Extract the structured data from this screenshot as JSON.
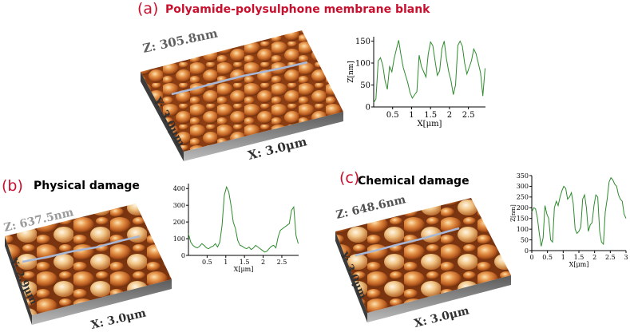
{
  "colors": {
    "label_red": "#c8102e",
    "profile_line": "#2e8b2e",
    "surface_light": "#f3c98a",
    "surface_mid": "#cf7a35",
    "surface_dark": "#6e2f0d",
    "trace": "#a9b8d6"
  },
  "panels": [
    {
      "label": "(a)",
      "title": "Polyamide-polysulphone membrane blank",
      "image": {
        "z": "Z: 305.8nm",
        "y": "Y: 3.0μm",
        "x": "X: 3.0μm"
      }
    },
    {
      "label": "(b)",
      "title": "Physical damage",
      "image": {
        "z": "Z: 637.5nm",
        "y": "Y: 2.9μm",
        "x": "X: 3.0μm"
      }
    },
    {
      "label": "(c)",
      "title": "Chemical damage",
      "image": {
        "z": "Z: 648.6nm",
        "y": "Y: 3.0μm",
        "x": "X: 3.0μm"
      }
    }
  ],
  "chart_data": [
    {
      "type": "line",
      "xlabel": "X[μm]",
      "ylabel": "Z[nm]",
      "xlim": [
        0,
        2.95
      ],
      "ylim": [
        0,
        160
      ],
      "xticks": [
        0.5,
        1,
        1.5,
        2,
        2.5
      ],
      "yticks": [
        0,
        50,
        100,
        150
      ],
      "grid": false,
      "x": [
        0,
        0.06,
        0.12,
        0.18,
        0.24,
        0.3,
        0.36,
        0.42,
        0.48,
        0.54,
        0.6,
        0.66,
        0.72,
        0.78,
        0.84,
        0.9,
        0.96,
        1.02,
        1.08,
        1.14,
        1.2,
        1.26,
        1.32,
        1.38,
        1.44,
        1.5,
        1.56,
        1.62,
        1.68,
        1.74,
        1.8,
        1.86,
        1.92,
        1.98,
        2.04,
        2.1,
        2.16,
        2.22,
        2.28,
        2.34,
        2.4,
        2.46,
        2.52,
        2.58,
        2.64,
        2.7,
        2.76,
        2.82,
        2.88,
        2.94
      ],
      "values": [
        10,
        18,
        105,
        112,
        95,
        60,
        40,
        92,
        80,
        110,
        132,
        152,
        118,
        90,
        72,
        55,
        32,
        20,
        28,
        35,
        118,
        92,
        80,
        68,
        120,
        148,
        140,
        105,
        72,
        82,
        132,
        150,
        110,
        80,
        60,
        28,
        50,
        140,
        150,
        138,
        100,
        75,
        90,
        105,
        132,
        122,
        100,
        78,
        25,
        88
      ]
    },
    {
      "type": "line",
      "xlabel": "X[μm]",
      "ylabel": "",
      "xlim": [
        0,
        2.95
      ],
      "ylim": [
        0,
        430
      ],
      "xticks": [
        0.5,
        1,
        1.5,
        2,
        2.5
      ],
      "yticks": [
        0,
        100,
        200,
        300,
        400
      ],
      "grid": false,
      "x": [
        0,
        0.06,
        0.12,
        0.18,
        0.24,
        0.3,
        0.36,
        0.42,
        0.48,
        0.54,
        0.6,
        0.66,
        0.72,
        0.78,
        0.84,
        0.9,
        0.96,
        1.02,
        1.08,
        1.14,
        1.2,
        1.26,
        1.32,
        1.38,
        1.44,
        1.5,
        1.56,
        1.62,
        1.68,
        1.74,
        1.8,
        1.86,
        1.92,
        1.98,
        2.04,
        2.1,
        2.16,
        2.22,
        2.28,
        2.34,
        2.4,
        2.46,
        2.52,
        2.58,
        2.64,
        2.7,
        2.76,
        2.82,
        2.88,
        2.94
      ],
      "values": [
        130,
        80,
        60,
        50,
        45,
        55,
        70,
        60,
        45,
        40,
        50,
        55,
        70,
        50,
        80,
        180,
        360,
        410,
        380,
        300,
        200,
        160,
        90,
        60,
        55,
        45,
        40,
        50,
        35,
        45,
        60,
        50,
        40,
        30,
        20,
        25,
        40,
        55,
        60,
        45,
        110,
        150,
        160,
        170,
        180,
        190,
        270,
        290,
        120,
        70
      ]
    },
    {
      "type": "line",
      "xlabel": "X[μm]",
      "ylabel": "Z[nm]",
      "xlim": [
        0,
        3
      ],
      "ylim": [
        0,
        350
      ],
      "xticks": [
        0,
        0.5,
        1,
        1.5,
        2,
        2.5,
        3
      ],
      "yticks": [
        0,
        50,
        100,
        150,
        200,
        250,
        300,
        350
      ],
      "grid": false,
      "x": [
        0,
        0.06,
        0.12,
        0.18,
        0.24,
        0.3,
        0.36,
        0.42,
        0.48,
        0.54,
        0.6,
        0.66,
        0.72,
        0.78,
        0.84,
        0.9,
        0.96,
        1.02,
        1.08,
        1.14,
        1.2,
        1.26,
        1.32,
        1.38,
        1.44,
        1.5,
        1.56,
        1.62,
        1.68,
        1.74,
        1.8,
        1.86,
        1.92,
        1.98,
        2.04,
        2.1,
        2.16,
        2.22,
        2.28,
        2.34,
        2.4,
        2.46,
        2.52,
        2.58,
        2.64,
        2.7,
        2.76,
        2.82,
        2.88,
        2.94,
        3.0
      ],
      "values": [
        180,
        200,
        195,
        150,
        80,
        20,
        60,
        210,
        170,
        150,
        50,
        40,
        200,
        230,
        210,
        250,
        280,
        300,
        290,
        240,
        250,
        270,
        220,
        100,
        80,
        90,
        110,
        240,
        260,
        200,
        90,
        120,
        130,
        210,
        260,
        250,
        90,
        40,
        30,
        180,
        240,
        320,
        340,
        330,
        310,
        300,
        260,
        240,
        230,
        170,
        150
      ]
    }
  ]
}
